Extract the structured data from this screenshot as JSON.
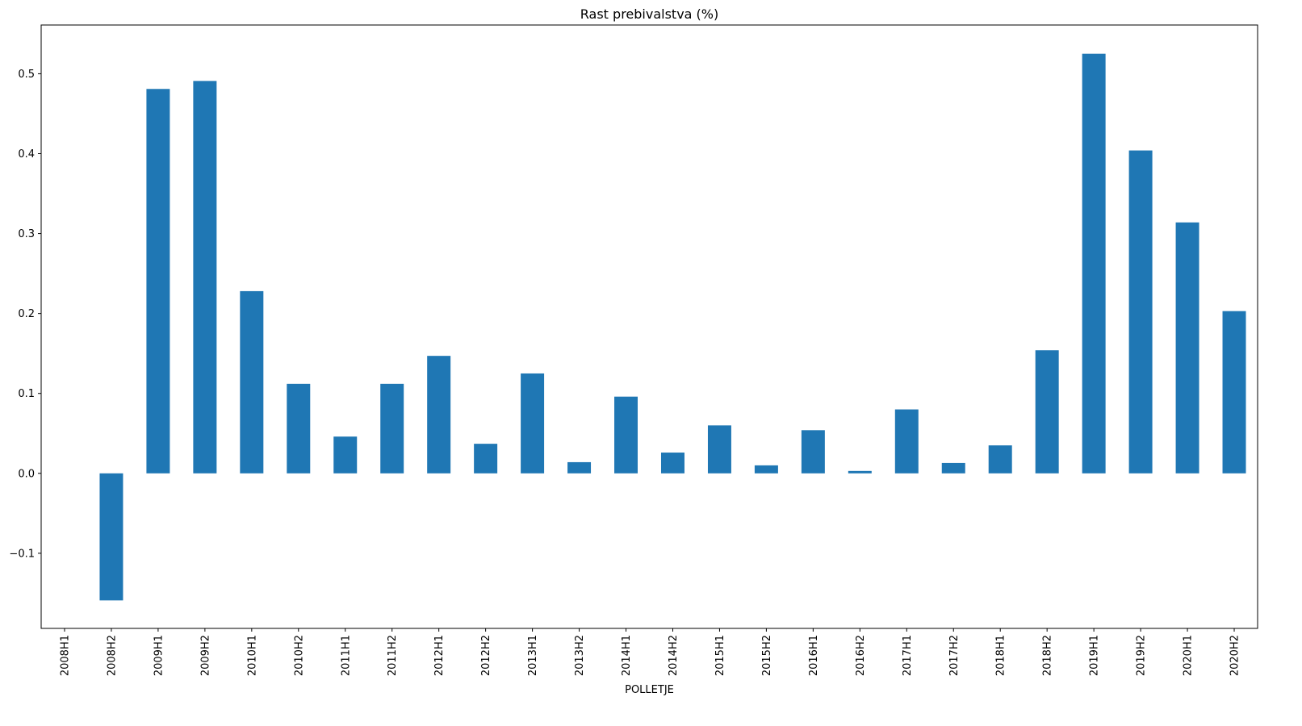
{
  "chart_data": {
    "type": "bar",
    "title": "Rast prebivalstva (%)",
    "xlabel": "POLLETJE",
    "ylabel": "",
    "categories": [
      "2008H1",
      "2008H2",
      "2009H1",
      "2009H2",
      "2010H1",
      "2010H2",
      "2011H1",
      "2011H2",
      "2012H1",
      "2012H2",
      "2013H1",
      "2013H2",
      "2014H1",
      "2014H2",
      "2015H1",
      "2015H2",
      "2016H1",
      "2016H2",
      "2017H1",
      "2017H2",
      "2018H1",
      "2018H2",
      "2019H1",
      "2019H2",
      "2020H1",
      "2020H2"
    ],
    "values": [
      null,
      -0.159,
      0.481,
      0.491,
      0.228,
      0.112,
      0.046,
      0.112,
      0.147,
      0.037,
      0.125,
      0.014,
      0.096,
      0.026,
      0.06,
      0.01,
      0.054,
      0.003,
      0.08,
      0.013,
      0.035,
      0.154,
      0.525,
      0.404,
      0.314,
      0.203
    ],
    "ylim": [
      -0.194,
      0.561
    ],
    "yticks": [
      -0.1,
      0.0,
      0.1,
      0.2,
      0.3,
      0.4,
      0.5
    ],
    "ytick_labels": [
      "−0.1",
      "0.0",
      "0.1",
      "0.2",
      "0.3",
      "0.4",
      "0.5"
    ],
    "bar_color": "#1f77b4",
    "grid": false,
    "legend": "none"
  }
}
